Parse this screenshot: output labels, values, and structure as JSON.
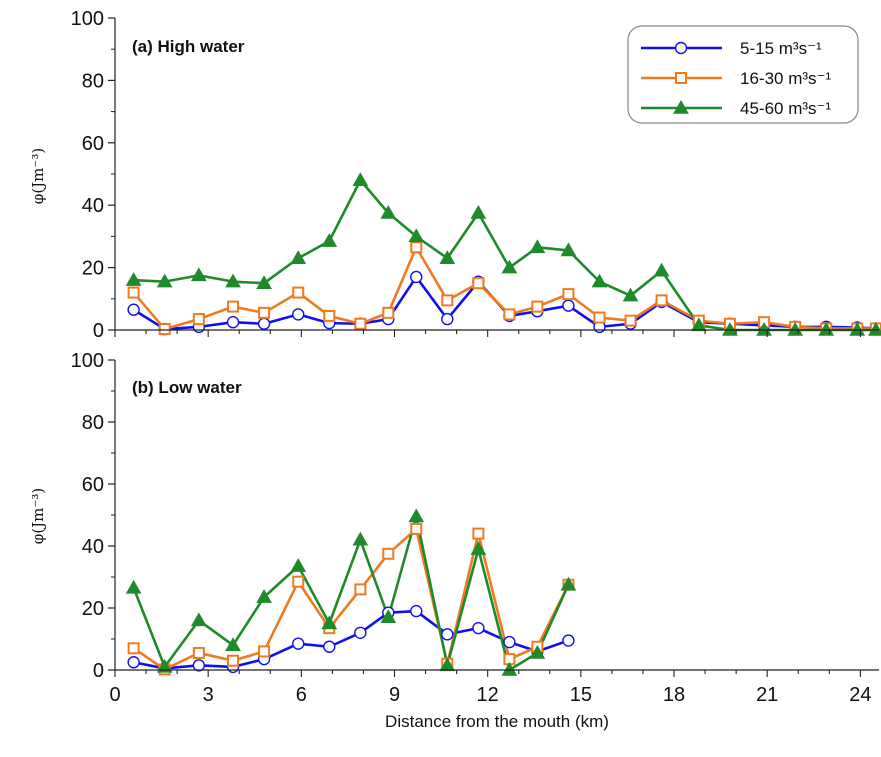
{
  "chart_data": [
    {
      "type": "line",
      "panel_label": "(a) High water",
      "ylabel": "φ(Jm⁻³)",
      "xlabel": "",
      "xlim": [
        0,
        24.6
      ],
      "ylim": [
        0,
        100
      ],
      "xticks": [
        "0",
        "3",
        "6",
        "9",
        "12",
        "15",
        "18",
        "21",
        "24"
      ],
      "yticks": [
        "0",
        "20",
        "40",
        "60",
        "80",
        "100"
      ],
      "legend": {
        "placement": "top-right"
      },
      "series": [
        {
          "name": "5-15 m³s⁻¹",
          "color": "#1010ee",
          "marker": "circle-open",
          "points": [
            [
              0.6,
              6.5
            ],
            [
              1.6,
              0.3
            ],
            [
              2.7,
              1.0
            ],
            [
              3.8,
              2.5
            ],
            [
              4.8,
              2.0
            ],
            [
              5.9,
              5.0
            ],
            [
              6.9,
              2.2
            ],
            [
              7.9,
              2.0
            ],
            [
              8.8,
              3.5
            ],
            [
              9.7,
              17.0
            ],
            [
              10.7,
              3.5
            ],
            [
              11.7,
              15.5
            ],
            [
              12.7,
              4.5
            ],
            [
              13.6,
              6.0
            ],
            [
              14.6,
              7.8
            ],
            [
              15.6,
              1.0
            ],
            [
              16.6,
              2.0
            ],
            [
              17.6,
              9.0
            ],
            [
              18.8,
              2.5
            ],
            [
              19.8,
              2.0
            ],
            [
              20.9,
              1.5
            ],
            [
              21.9,
              1.0
            ],
            [
              22.9,
              1.0
            ],
            [
              23.9,
              0.8
            ],
            [
              24.5,
              0.5
            ]
          ]
        },
        {
          "name": "16-30 m³s⁻¹",
          "color": "#f07a20",
          "marker": "square-open",
          "points": [
            [
              0.6,
              12.0
            ],
            [
              1.6,
              0.3
            ],
            [
              2.7,
              3.5
            ],
            [
              3.8,
              7.5
            ],
            [
              4.8,
              5.5
            ],
            [
              5.9,
              12.0
            ],
            [
              6.9,
              4.5
            ],
            [
              7.9,
              2.0
            ],
            [
              8.8,
              5.5
            ],
            [
              9.7,
              26.5
            ],
            [
              10.7,
              9.5
            ],
            [
              11.7,
              15.0
            ],
            [
              12.7,
              5.0
            ],
            [
              13.6,
              7.5
            ],
            [
              14.6,
              11.5
            ],
            [
              15.6,
              4.0
            ],
            [
              16.6,
              3.0
            ],
            [
              17.6,
              9.5
            ],
            [
              18.8,
              3.0
            ],
            [
              19.8,
              2.0
            ],
            [
              20.9,
              2.5
            ],
            [
              21.9,
              1.0
            ],
            [
              22.9,
              0.5
            ],
            [
              23.9,
              0.5
            ],
            [
              24.5,
              0.5
            ]
          ]
        },
        {
          "name": "45-60 m³s⁻¹",
          "color": "#1f8a2a",
          "marker": "triangle-filled",
          "points": [
            [
              0.6,
              16.0
            ],
            [
              1.6,
              15.5
            ],
            [
              2.7,
              17.5
            ],
            [
              3.8,
              15.5
            ],
            [
              4.8,
              15.0
            ],
            [
              5.9,
              23.0
            ],
            [
              6.9,
              28.5
            ],
            [
              7.9,
              48.0
            ],
            [
              8.8,
              37.5
            ],
            [
              9.7,
              30.0
            ],
            [
              10.7,
              23.0
            ],
            [
              11.7,
              37.5
            ],
            [
              12.7,
              20.0
            ],
            [
              13.6,
              26.5
            ],
            [
              14.6,
              25.5
            ],
            [
              15.6,
              15.5
            ],
            [
              16.6,
              11.0
            ],
            [
              17.6,
              19.0
            ],
            [
              18.8,
              1.5
            ],
            [
              19.8,
              0.0
            ],
            [
              20.9,
              0.0
            ],
            [
              21.9,
              0.0
            ],
            [
              22.9,
              0.0
            ],
            [
              23.9,
              0.0
            ],
            [
              24.5,
              0.0
            ]
          ]
        }
      ]
    },
    {
      "type": "line",
      "panel_label": "(b) Low water",
      "ylabel": "φ(Jm⁻³)",
      "xlabel": "Distance from the mouth (km)",
      "xlim": [
        0,
        24.6
      ],
      "ylim": [
        0,
        100
      ],
      "xticks": [
        "0",
        "3",
        "6",
        "9",
        "12",
        "15",
        "18",
        "21",
        "24"
      ],
      "yticks": [
        "0",
        "20",
        "40",
        "60",
        "80",
        "100"
      ],
      "series": [
        {
          "name": "5-15 m³s⁻¹",
          "color": "#1010ee",
          "marker": "circle-open",
          "points": [
            [
              0.6,
              2.5
            ],
            [
              1.6,
              0.5
            ],
            [
              2.7,
              1.5
            ],
            [
              3.8,
              1.0
            ],
            [
              4.8,
              3.5
            ],
            [
              5.9,
              8.5
            ],
            [
              6.9,
              7.5
            ],
            [
              7.9,
              12.0
            ],
            [
              8.8,
              18.5
            ],
            [
              9.7,
              19.0
            ],
            [
              10.7,
              11.5
            ],
            [
              11.7,
              13.5
            ],
            [
              12.7,
              9.0
            ],
            [
              13.6,
              6.0
            ],
            [
              14.6,
              9.5
            ]
          ]
        },
        {
          "name": "16-30 m³s⁻¹",
          "color": "#f07a20",
          "marker": "square-open",
          "points": [
            [
              0.6,
              7.0
            ],
            [
              1.6,
              0.2
            ],
            [
              2.7,
              5.5
            ],
            [
              3.8,
              3.0
            ],
            [
              4.8,
              6.0
            ],
            [
              5.9,
              28.5
            ],
            [
              6.9,
              13.5
            ],
            [
              7.9,
              26.0
            ],
            [
              8.8,
              37.5
            ],
            [
              9.7,
              45.5
            ],
            [
              10.7,
              2.0
            ],
            [
              11.7,
              44.0
            ],
            [
              12.7,
              3.5
            ],
            [
              13.6,
              7.5
            ],
            [
              14.6,
              27.5
            ]
          ]
        },
        {
          "name": "45-60 m³s⁻¹",
          "color": "#1f8a2a",
          "marker": "triangle-filled",
          "points": [
            [
              0.6,
              26.5
            ],
            [
              1.6,
              1.0
            ],
            [
              2.7,
              16.0
            ],
            [
              3.8,
              8.0
            ],
            [
              4.8,
              23.5
            ],
            [
              5.9,
              33.5
            ],
            [
              6.9,
              15.0
            ],
            [
              7.9,
              42.0
            ],
            [
              8.8,
              17.0
            ],
            [
              9.7,
              49.5
            ],
            [
              10.7,
              1.5
            ],
            [
              11.7,
              39.0
            ],
            [
              12.7,
              0.0
            ],
            [
              13.6,
              5.5
            ],
            [
              14.6,
              27.5
            ]
          ]
        }
      ]
    }
  ]
}
